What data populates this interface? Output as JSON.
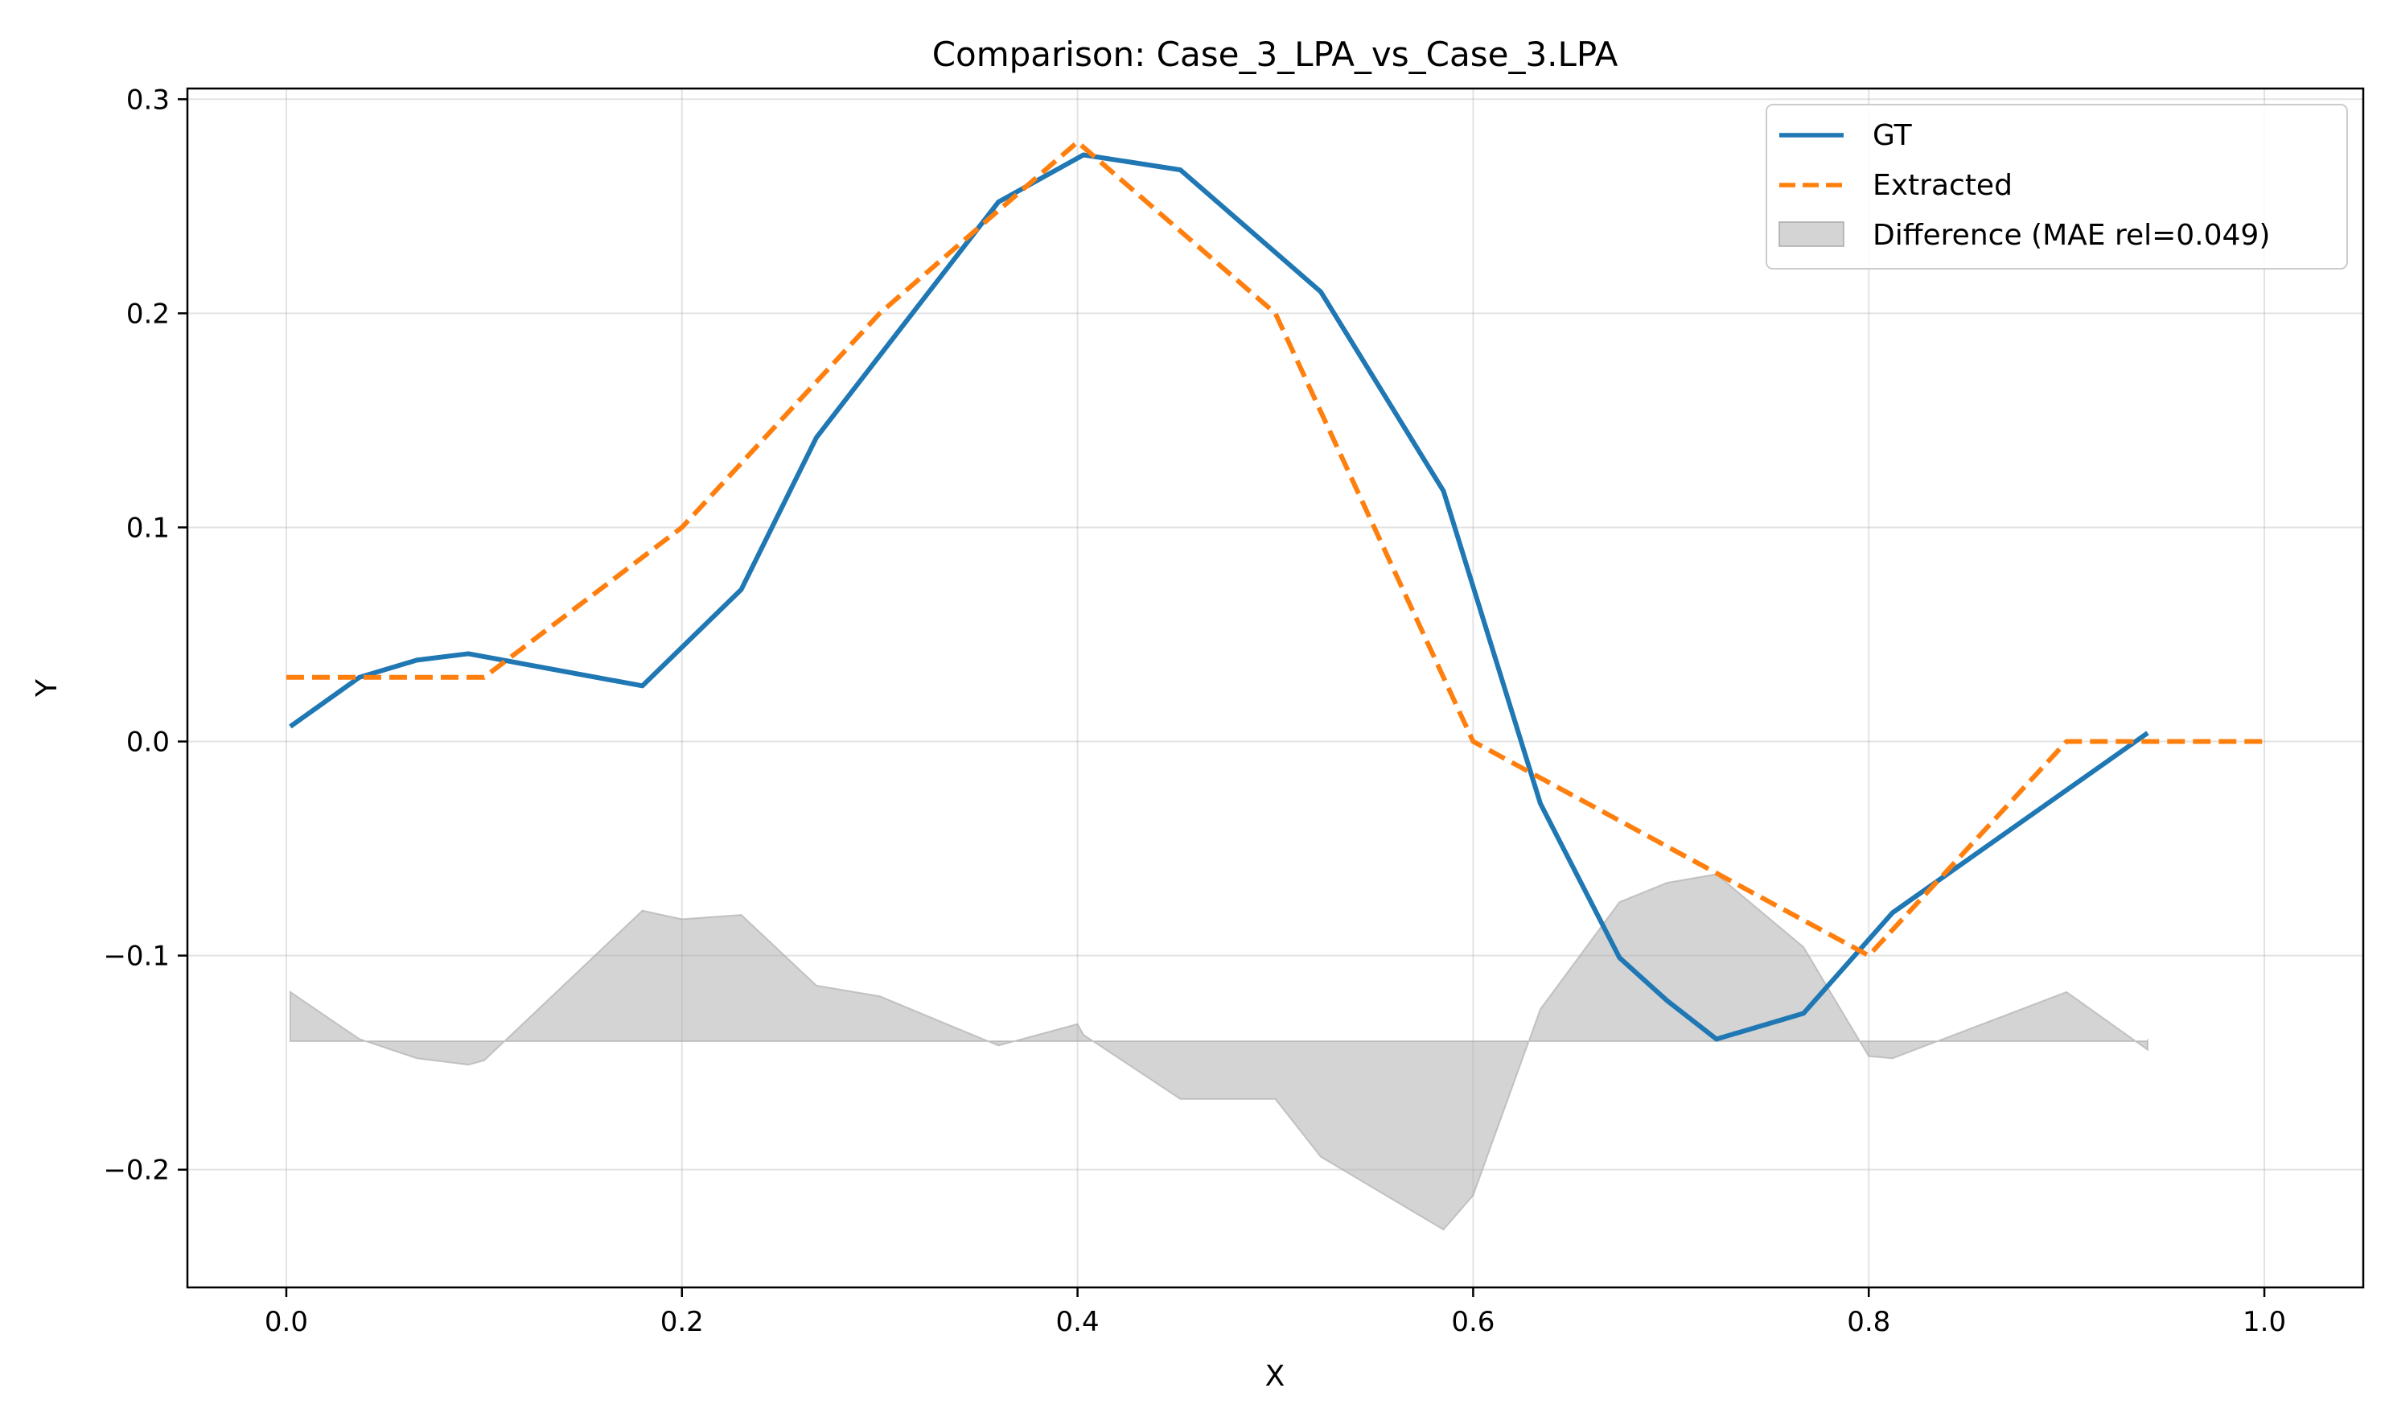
{
  "chart_data": {
    "type": "line",
    "title": "Comparison: Case_3_LPA_vs_Case_3.LPA",
    "xlabel": "X",
    "ylabel": "Y",
    "xlim": [
      -0.05,
      1.05
    ],
    "ylim": [
      -0.255,
      0.305
    ],
    "grid": true,
    "legend_position": "top-right",
    "x_ticks": [
      0.0,
      0.2,
      0.4,
      0.6,
      0.8,
      1.0
    ],
    "x_tick_labels": [
      "0.0",
      "0.2",
      "0.4",
      "0.6",
      "0.8",
      "1.0"
    ],
    "y_ticks": [
      0.3,
      0.2,
      0.1,
      0.0,
      -0.1,
      -0.2
    ],
    "y_tick_labels": [
      "0.3",
      "0.2",
      "0.1",
      "0.0",
      "−0.1",
      "−0.2"
    ],
    "series": [
      {
        "name": "GT",
        "color": "#1f77b4",
        "style": "solid",
        "points": [
          [
            0.002,
            0.007
          ],
          [
            0.037,
            0.03
          ],
          [
            0.066,
            0.038
          ],
          [
            0.092,
            0.041
          ],
          [
            0.18,
            0.026
          ],
          [
            0.23,
            0.071
          ],
          [
            0.268,
            0.142
          ],
          [
            0.36,
            0.252
          ],
          [
            0.403,
            0.274
          ],
          [
            0.452,
            0.267
          ],
          [
            0.523,
            0.21
          ],
          [
            0.585,
            0.117
          ],
          [
            0.634,
            -0.029
          ],
          [
            0.674,
            -0.101
          ],
          [
            0.698,
            -0.121
          ],
          [
            0.723,
            -0.139
          ],
          [
            0.767,
            -0.127
          ],
          [
            0.812,
            -0.08
          ],
          [
            0.941,
            0.004
          ]
        ]
      },
      {
        "name": "Extracted",
        "color": "#ff7f0e",
        "style": "dashed",
        "points": [
          [
            0.0,
            0.03
          ],
          [
            0.1,
            0.03
          ],
          [
            0.2,
            0.1
          ],
          [
            0.3,
            0.2
          ],
          [
            0.4,
            0.28
          ],
          [
            0.5,
            0.2
          ],
          [
            0.6,
            0.0
          ],
          [
            0.7,
            -0.05
          ],
          [
            0.8,
            -0.1
          ],
          [
            0.9,
            0.0
          ],
          [
            1.0,
            0.0
          ]
        ]
      }
    ],
    "difference": {
      "name": "Difference (MAE rel=0.049)",
      "color": "#a9a9a9",
      "baseline": -0.14,
      "points": [
        [
          0.002,
          -0.117
        ],
        [
          0.037,
          -0.139
        ],
        [
          0.066,
          -0.148
        ],
        [
          0.092,
          -0.151
        ],
        [
          0.1,
          -0.149
        ],
        [
          0.18,
          -0.079
        ],
        [
          0.2,
          -0.083
        ],
        [
          0.23,
          -0.081
        ],
        [
          0.268,
          -0.114
        ],
        [
          0.3,
          -0.119
        ],
        [
          0.36,
          -0.142
        ],
        [
          0.4,
          -0.132
        ],
        [
          0.403,
          -0.137
        ],
        [
          0.452,
          -0.167
        ],
        [
          0.5,
          -0.167
        ],
        [
          0.523,
          -0.194
        ],
        [
          0.585,
          -0.228
        ],
        [
          0.6,
          -0.212
        ],
        [
          0.634,
          -0.125
        ],
        [
          0.674,
          -0.075
        ],
        [
          0.698,
          -0.066
        ],
        [
          0.723,
          -0.062
        ],
        [
          0.767,
          -0.096
        ],
        [
          0.8,
          -0.147
        ],
        [
          0.812,
          -0.148
        ],
        [
          0.9,
          -0.117
        ],
        [
          0.941,
          -0.144
        ],
        [
          0.941,
          -0.139
        ]
      ]
    }
  }
}
